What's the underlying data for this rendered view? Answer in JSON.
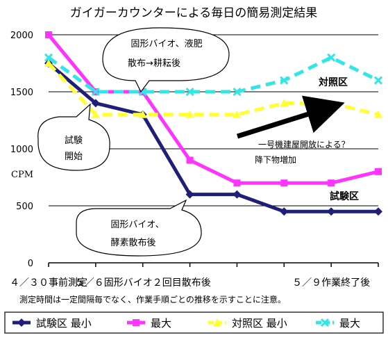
{
  "chart_data": {
    "type": "line",
    "title": "ガイガーカウンターによる毎日の簡易測定結果",
    "ylabel": "CPM",
    "ylim": [
      0,
      2000
    ],
    "yticks": [
      0,
      500,
      1000,
      1500,
      2000
    ],
    "x_labels": [
      {
        "index": 0,
        "text": "４／３０事前測定"
      },
      {
        "index": 2,
        "text": "５／６固形バイオ２回目散布後"
      },
      {
        "index": 6,
        "text": "５／９作業終了後"
      }
    ],
    "x": [
      0,
      1,
      2,
      3,
      4,
      5,
      6,
      7
    ],
    "series": [
      {
        "name": "試験区 最小",
        "color": "#1f1f7a",
        "dash": "solid",
        "marker": "diamond",
        "values": [
          1750,
          1400,
          1300,
          600,
          600,
          450,
          450,
          450
        ]
      },
      {
        "name": "最大",
        "color": "#ff33ff",
        "dash": "solid",
        "marker": "square",
        "values": [
          2000,
          1500,
          1500,
          900,
          700,
          700,
          700,
          800
        ]
      },
      {
        "name": "対照区 最小",
        "color": "#ffff33",
        "dash": "dashed",
        "marker": "triangle",
        "values": [
          1750,
          1300,
          1300,
          1300,
          1300,
          1400,
          1400,
          1300
        ]
      },
      {
        "name": "最大",
        "color": "#33e6e6",
        "dash": "dashed",
        "marker": "x",
        "values": [
          1800,
          1500,
          1500,
          1500,
          1500,
          1600,
          1800,
          1600
        ]
      }
    ],
    "annotations": {
      "taisho": "対照区",
      "shiken": "試験区",
      "callout_start": [
        "試験",
        "開始"
      ],
      "callout_sanpu": [
        "固形バイオ、液肥",
        "散布→耕耘後"
      ],
      "callout_koso": [
        "固形バイオ、",
        "酵素散布後"
      ],
      "house": [
        "一号機建屋開放による？",
        "降下物増加"
      ]
    },
    "note": "測定時間は一定間隔毎でなく、作業手順ごとの推移を示すことに注意。",
    "grid": "horizontal",
    "legend_position": "bottom"
  }
}
